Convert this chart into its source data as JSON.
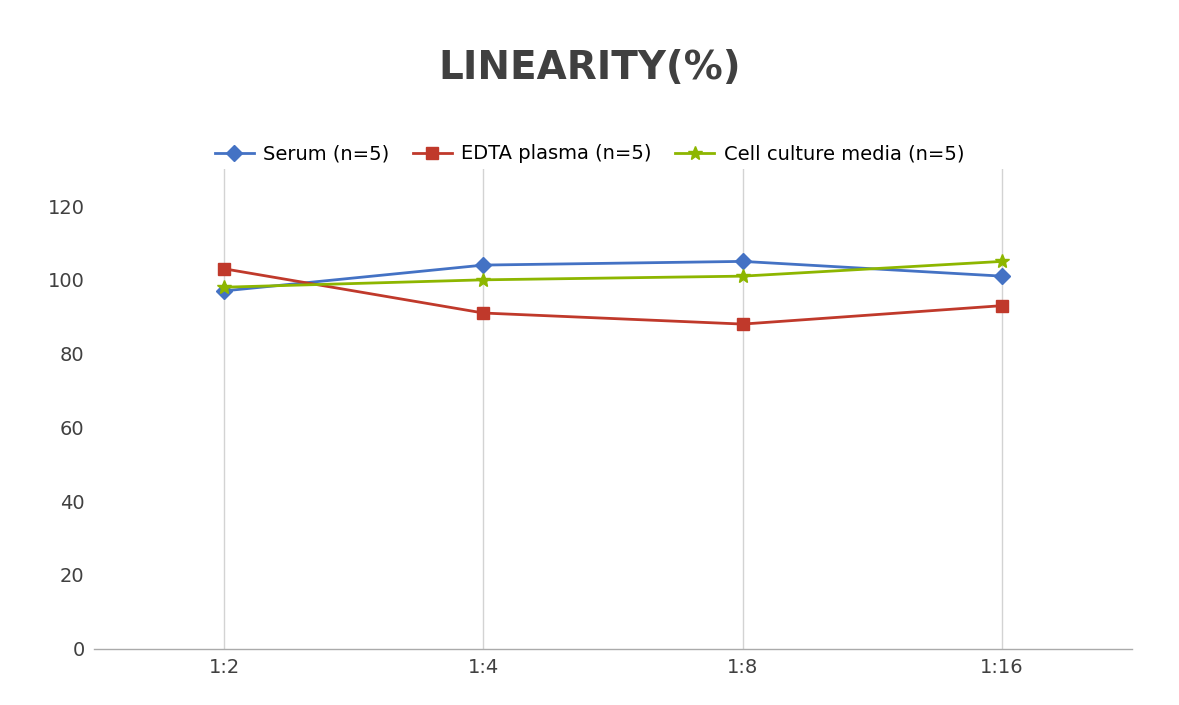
{
  "title": "LINEARITY(%)",
  "title_fontsize": 28,
  "title_fontweight": "bold",
  "title_color": "#404040",
  "x_labels": [
    "1:2",
    "1:4",
    "1:8",
    "1:16"
  ],
  "x_positions": [
    0,
    1,
    2,
    3
  ],
  "ylim": [
    0,
    130
  ],
  "yticks": [
    0,
    20,
    40,
    60,
    80,
    100,
    120
  ],
  "series": [
    {
      "label": "Serum (n=5)",
      "values": [
        97,
        104,
        105,
        101
      ],
      "color": "#4472C4",
      "marker": "D",
      "markersize": 8,
      "linewidth": 2.0
    },
    {
      "label": "EDTA plasma (n=5)",
      "values": [
        103,
        91,
        88,
        93
      ],
      "color": "#C0392B",
      "marker": "s",
      "markersize": 8,
      "linewidth": 2.0
    },
    {
      "label": "Cell culture media (n=5)",
      "values": [
        98,
        100,
        101,
        105
      ],
      "color": "#8DB600",
      "marker": "*",
      "markersize": 10,
      "linewidth": 2.0
    }
  ],
  "background_color": "#FFFFFF",
  "grid_color": "#D3D3D3",
  "legend_fontsize": 14,
  "tick_fontsize": 14,
  "tick_color": "#404040"
}
